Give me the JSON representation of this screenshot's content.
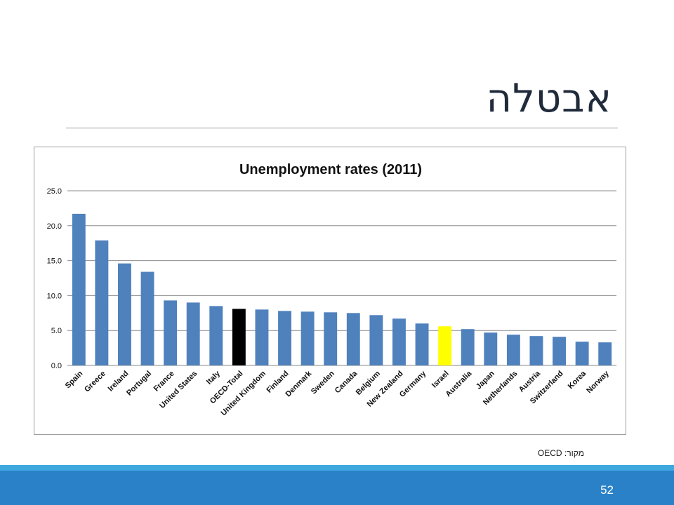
{
  "slide": {
    "title": "אבטלה",
    "source": "מקור: OECD",
    "page_number": "52"
  },
  "colors": {
    "bar_default": "#4f81bd",
    "bar_oecd_total": "#000000",
    "bar_israel": "#ffff00",
    "footer": "#2a81c8",
    "footer_accent": "#3fa9df"
  },
  "chart_data": {
    "type": "bar",
    "title": "Unemployment rates (2011)",
    "xlabel": "",
    "ylabel": "",
    "ylim": [
      0,
      25
    ],
    "yticks": [
      "0.0",
      "5.0",
      "10.0",
      "15.0",
      "20.0",
      "25.0"
    ],
    "grid": true,
    "legend": "none",
    "categories": [
      "Spain",
      "Greece",
      "Ireland",
      "Portugal",
      "France",
      "United States",
      "Italy",
      "OECD-Total",
      "United Kingdom",
      "Finland",
      "Denmark",
      "Sweden",
      "Canada",
      "Belgium",
      "New Zealand",
      "Germany",
      "Israel",
      "Australia",
      "Japan",
      "Netherlands",
      "Austria",
      "Switzerland",
      "Korea",
      "Norway"
    ],
    "values": [
      21.7,
      17.9,
      14.6,
      13.4,
      9.3,
      9.0,
      8.5,
      8.1,
      8.0,
      7.8,
      7.7,
      7.6,
      7.5,
      7.2,
      6.7,
      6.0,
      5.6,
      5.2,
      4.7,
      4.4,
      4.2,
      4.1,
      3.4,
      3.3
    ],
    "highlight": {
      "OECD-Total": "#000000",
      "Israel": "#ffff00"
    }
  }
}
